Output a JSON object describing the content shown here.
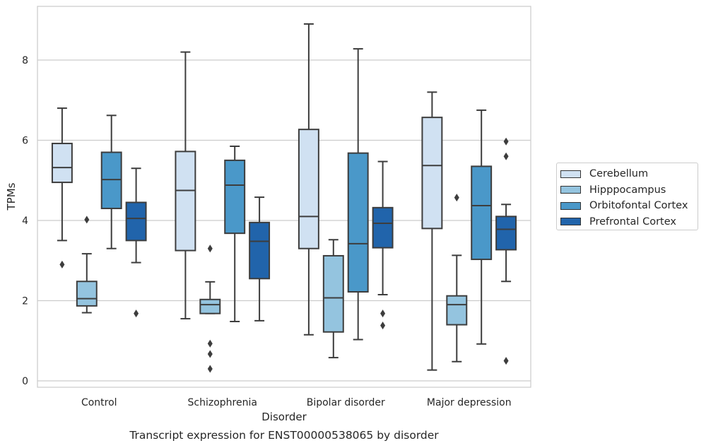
{
  "chart_data": {
    "type": "box",
    "title": "Transcript expression for ENST00000538065 by disorder",
    "xlabel": "Disorder",
    "ylabel": "TPMs",
    "ylim": [
      -0.15,
      9.45
    ],
    "yticks": [
      0,
      2,
      4,
      6,
      8
    ],
    "grid": true,
    "legend_position": "right",
    "categories": [
      "Control",
      "Schizophrenia",
      "Bipolar disorder",
      "Major depression"
    ],
    "series": [
      {
        "name": "Cerebellum",
        "color": "#d0e1f2",
        "boxes": [
          {
            "whislo": 3.5,
            "q1": 4.95,
            "med": 5.32,
            "q3": 5.92,
            "whishi": 6.8,
            "fliers": [
              2.9
            ]
          },
          {
            "whislo": 1.55,
            "q1": 3.25,
            "med": 4.75,
            "q3": 5.72,
            "whishi": 8.2,
            "fliers": []
          },
          {
            "whislo": 1.15,
            "q1": 3.3,
            "med": 4.1,
            "q3": 6.27,
            "whishi": 8.9,
            "fliers": []
          },
          {
            "whislo": 0.27,
            "q1": 3.8,
            "med": 5.37,
            "q3": 6.57,
            "whishi": 7.2,
            "fliers": []
          }
        ]
      },
      {
        "name": "Hipppocampus",
        "color": "#94c4df",
        "boxes": [
          {
            "whislo": 1.7,
            "q1": 1.87,
            "med": 2.05,
            "q3": 2.48,
            "whishi": 3.17,
            "fliers": [
              4.02
            ]
          },
          {
            "whislo": 1.68,
            "q1": 1.68,
            "med": 1.9,
            "q3": 2.03,
            "whishi": 2.47,
            "fliers": [
              3.3,
              0.93,
              0.67,
              0.3
            ]
          },
          {
            "whislo": 0.58,
            "q1": 1.22,
            "med": 2.07,
            "q3": 3.12,
            "whishi": 3.52,
            "fliers": []
          },
          {
            "whislo": 0.48,
            "q1": 1.4,
            "med": 1.9,
            "q3": 2.12,
            "whishi": 3.13,
            "fliers": [
              4.57
            ]
          }
        ]
      },
      {
        "name": "Orbitofontal Cortex",
        "color": "#4a98c9",
        "boxes": [
          {
            "whislo": 3.3,
            "q1": 4.3,
            "med": 5.02,
            "q3": 5.7,
            "whishi": 6.62,
            "fliers": []
          },
          {
            "whislo": 1.48,
            "q1": 3.68,
            "med": 4.88,
            "q3": 5.5,
            "whishi": 5.85,
            "fliers": []
          },
          {
            "whislo": 1.03,
            "q1": 2.22,
            "med": 3.42,
            "q3": 5.68,
            "whishi": 8.28,
            "fliers": []
          },
          {
            "whislo": 0.92,
            "q1": 3.03,
            "med": 4.37,
            "q3": 5.35,
            "whishi": 6.75,
            "fliers": []
          }
        ]
      },
      {
        "name": "Prefrontal Cortex",
        "color": "#2164ab",
        "boxes": [
          {
            "whislo": 2.95,
            "q1": 3.5,
            "med": 4.05,
            "q3": 4.45,
            "whishi": 5.3,
            "fliers": [
              1.68
            ]
          },
          {
            "whislo": 1.5,
            "q1": 2.55,
            "med": 3.48,
            "q3": 3.95,
            "whishi": 4.58,
            "fliers": []
          },
          {
            "whislo": 2.15,
            "q1": 3.32,
            "med": 3.93,
            "q3": 4.32,
            "whishi": 5.47,
            "fliers": [
              1.68,
              1.38
            ]
          },
          {
            "whislo": 2.48,
            "q1": 3.27,
            "med": 3.78,
            "q3": 4.1,
            "whishi": 4.4,
            "fliers": [
              5.97,
              5.6,
              0.5
            ]
          }
        ]
      }
    ]
  }
}
